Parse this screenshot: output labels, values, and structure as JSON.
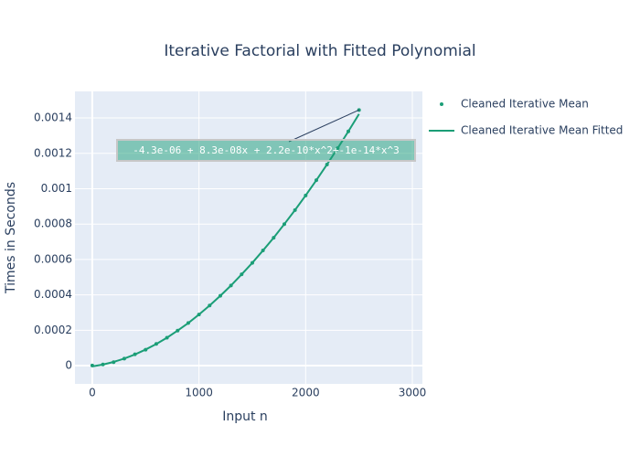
{
  "chart_data": {
    "type": "scatter",
    "title": "Iterative Factorial with Fitted Polynomial",
    "x_label": "Input n",
    "y_label": "Times in Seconds",
    "x": [
      0,
      100,
      200,
      300,
      400,
      500,
      600,
      700,
      800,
      900,
      1000,
      1100,
      1200,
      1300,
      1400,
      1500,
      1600,
      1700,
      1800,
      1900,
      2000,
      2100,
      2200,
      2300,
      2400,
      2500
    ],
    "series": [
      {
        "name": "Cleaned Iterative Mean",
        "color": "#1b9e77",
        "mode": "markers",
        "values": [
          1e-06,
          7e-06,
          2e-05,
          4e-05,
          6.4e-05,
          9e-05,
          0.000123,
          0.000158,
          0.000198,
          0.000241,
          0.000289,
          0.00034,
          0.000395,
          0.000453,
          0.000516,
          0.000581,
          0.000651,
          0.000723,
          0.0008,
          0.000879,
          0.000962,
          0.001048,
          0.001137,
          0.001229,
          0.001324,
          0.001445
        ]
      },
      {
        "name": "Cleaned Iterative Mean Fitted",
        "color": "#1b9e77",
        "mode": "lines",
        "values": [
          -4.3e-06,
          6.2e-06,
          2.1e-05,
          4e-05,
          6.35e-05,
          9.1e-05,
          0.0001225,
          0.000158,
          0.000198,
          0.000241,
          0.000289,
          0.00034,
          0.000395,
          0.000453,
          0.000516,
          0.000581,
          0.000651,
          0.000723,
          0.0008,
          0.000879,
          0.000962,
          0.001048,
          0.001137,
          0.001229,
          0.001324,
          0.001422
        ]
      }
    ],
    "annotation": {
      "text": "-4.3e-06 + 8.3e-08x + 2.2e-10*x^2+-1e-14*x^3",
      "x": 2500,
      "y": 0.001445
    },
    "xlim": [
      -162,
      3094
    ],
    "ylim": [
      -0.000103,
      0.00155
    ],
    "xticks": [
      0,
      1000,
      2000,
      3000
    ],
    "yticks": [
      0,
      0.0002,
      0.0004,
      0.0006,
      0.0008,
      0.001,
      0.0012,
      0.0014
    ],
    "grid": true
  }
}
